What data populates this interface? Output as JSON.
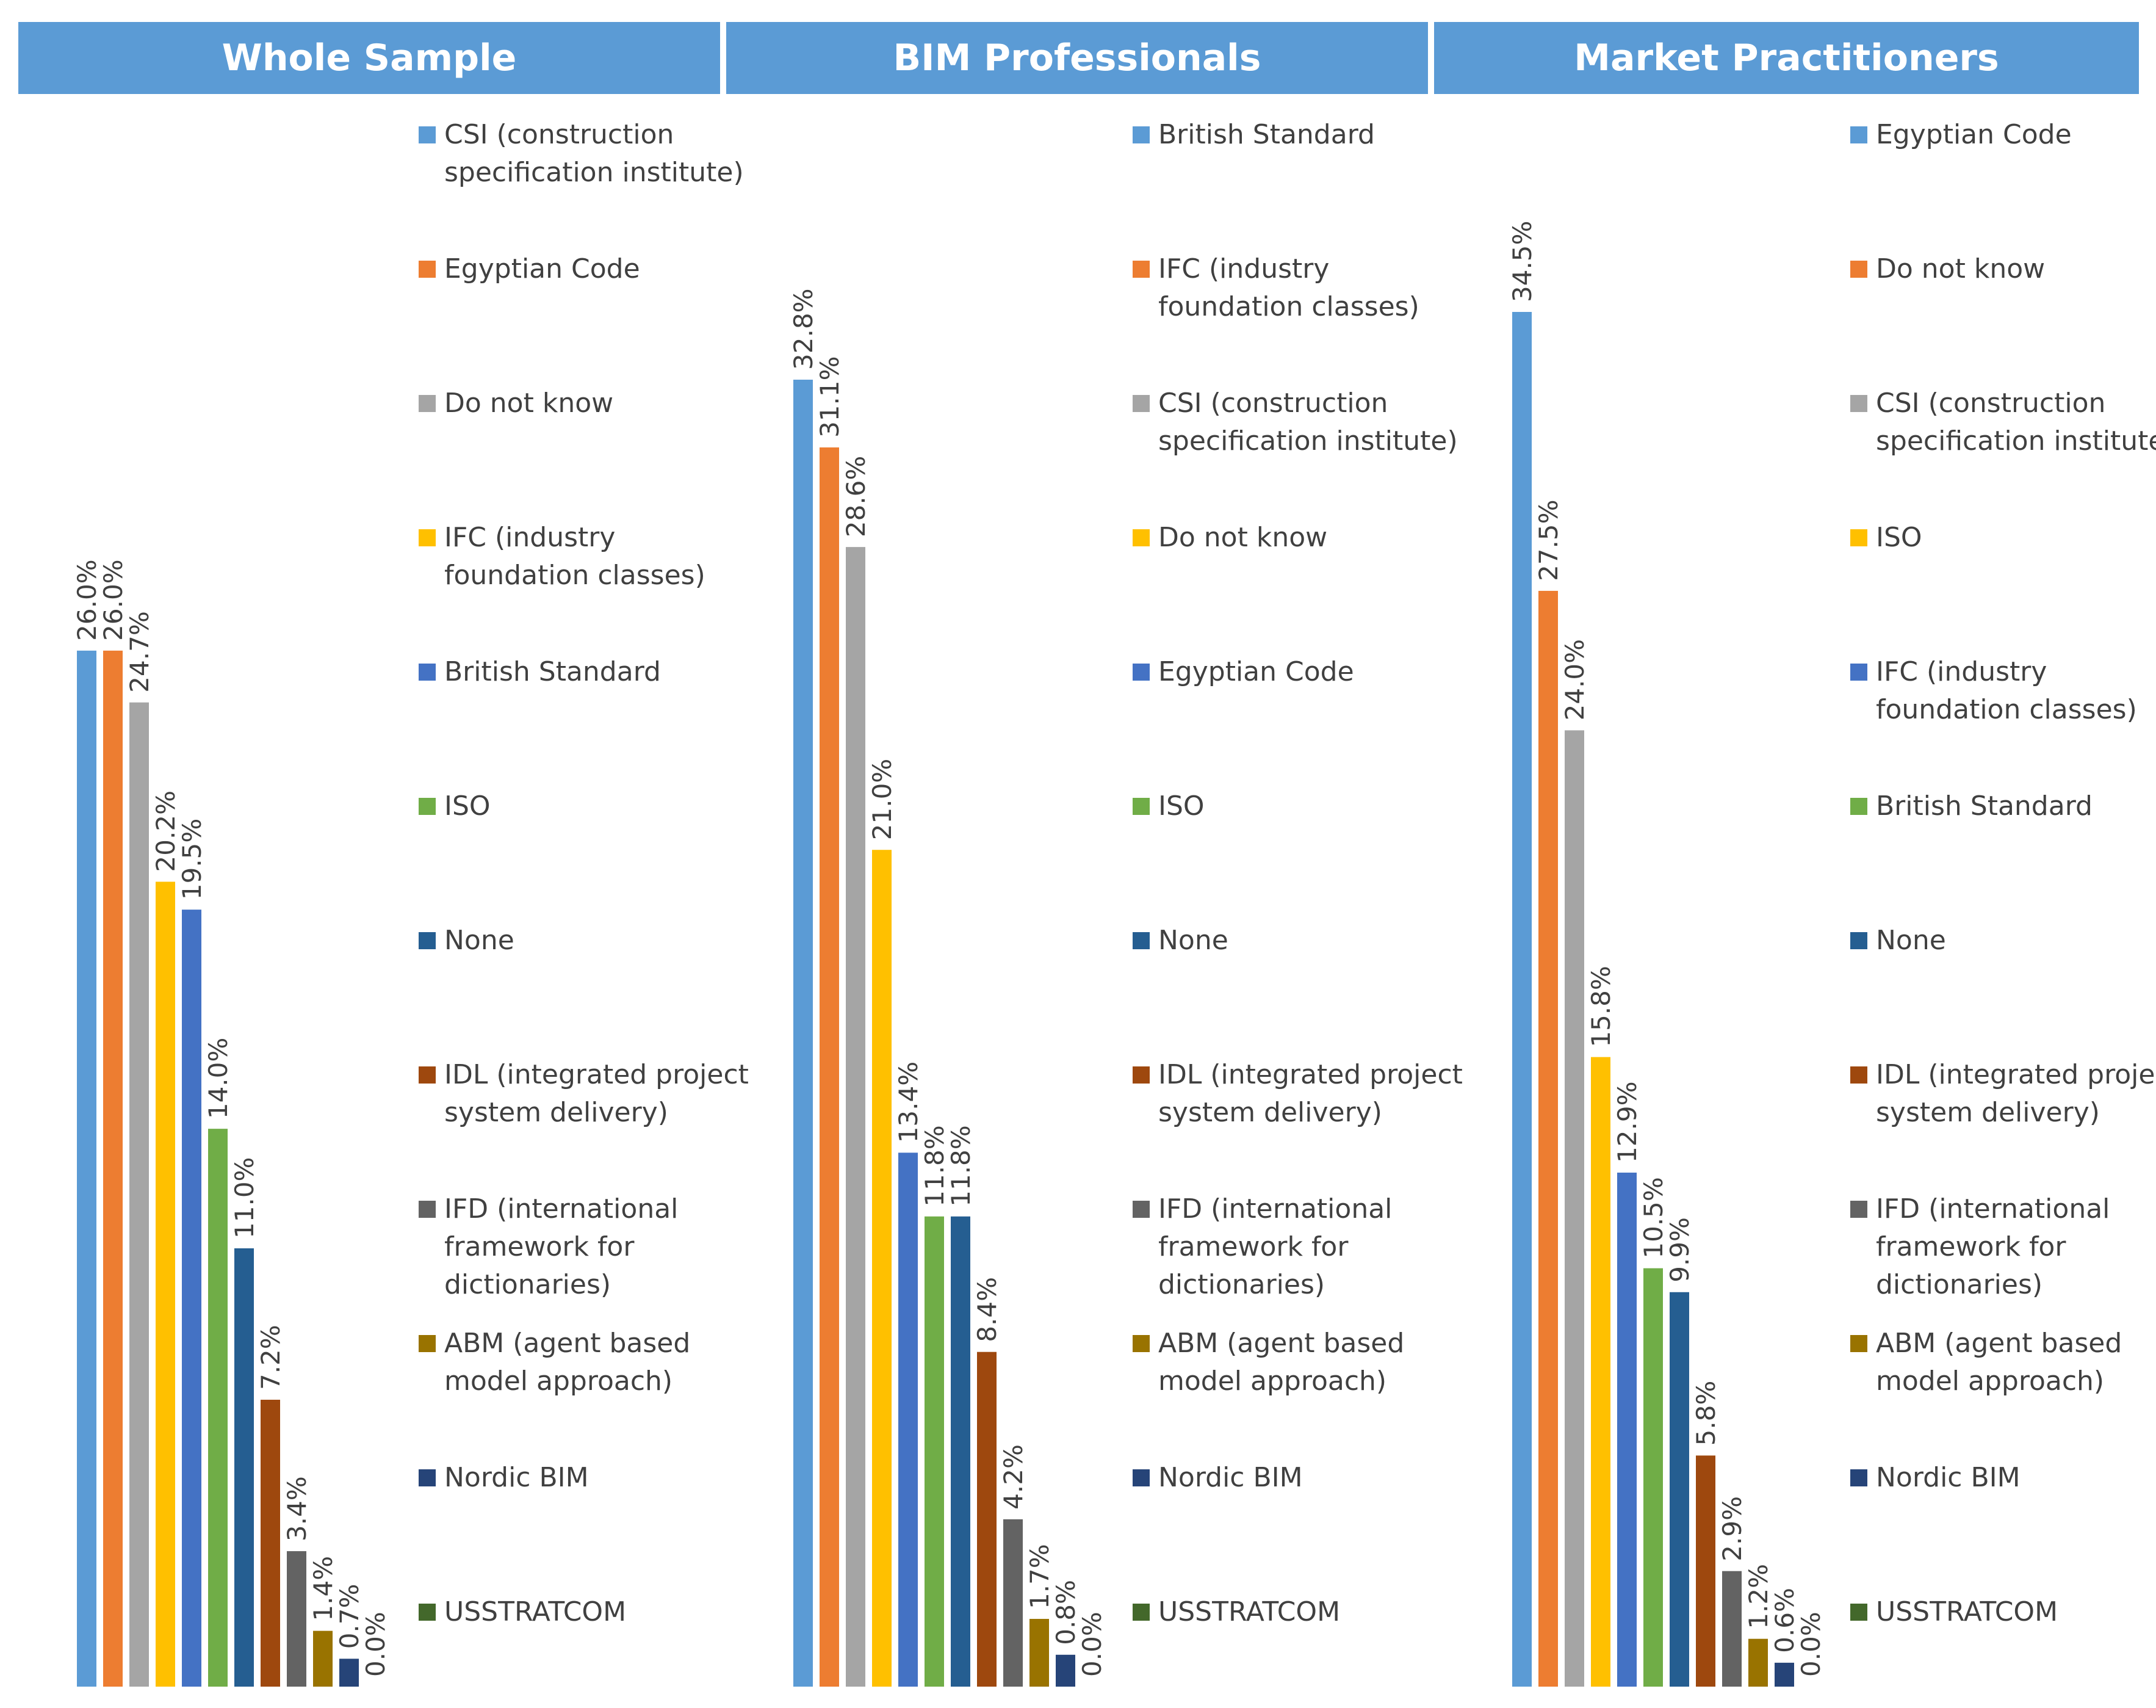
{
  "colors": {
    "header_bg": "#5b9bd5",
    "header_text": "#ffffff",
    "label_text": "#404040"
  },
  "chart_data": [
    {
      "type": "bar",
      "title": "Whole Sample",
      "categories": [
        "CSI (construction specification institute)",
        "Egyptian Code",
        "Do not know",
        "IFC (industry foundation classes)",
        "British Standard",
        "ISO",
        "None",
        "IDL (integrated project system delivery)",
        "IFD (international framework for dictionaries)",
        "ABM (agent based model approach)",
        "Nordic BIM",
        "USSTRATCOM"
      ],
      "values": [
        26.0,
        26.0,
        24.7,
        20.2,
        19.5,
        14.0,
        11.0,
        7.2,
        3.4,
        1.4,
        0.7,
        0.0
      ],
      "value_labels": [
        "26.0%",
        "26.0%",
        "24.7%",
        "20.2%",
        "19.5%",
        "14.0%",
        "11.0%",
        "7.2%",
        "3.4%",
        "1.4%",
        "0.7%",
        "0.0%"
      ],
      "colors": [
        "#5b9bd5",
        "#ed7d31",
        "#a5a5a5",
        "#ffc000",
        "#4472c4",
        "#70ad47",
        "#255e91",
        "#9e480e",
        "#636363",
        "#997300",
        "#264478",
        "#43682b"
      ],
      "legend_items": [
        {
          "label": "CSI (construction specification institute)",
          "color": "#5b9bd5"
        },
        {
          "label": "Egyptian Code",
          "color": "#ed7d31"
        },
        {
          "label": "Do not know",
          "color": "#a5a5a5"
        },
        {
          "label": "IFC (industry foundation classes)",
          "color": "#ffc000"
        },
        {
          "label": "British Standard",
          "color": "#4472c4"
        },
        {
          "label": "ISO",
          "color": "#70ad47"
        },
        {
          "label": "None",
          "color": "#255e91"
        },
        {
          "label": "IDL (integrated project system delivery)",
          "color": "#9e480e"
        },
        {
          "label": "IFD (international framework for dictionaries)",
          "color": "#636363"
        },
        {
          "label": "ABM (agent based model approach)",
          "color": "#997300"
        },
        {
          "label": "Nordic BIM",
          "color": "#264478"
        },
        {
          "label": "USSTRATCOM",
          "color": "#43682b"
        }
      ],
      "ylim": [
        0,
        35
      ],
      "grid": false,
      "legend_position": "right"
    },
    {
      "type": "bar",
      "title": "BIM Professionals",
      "categories": [
        "British Standard",
        "IFC (industry foundation classes)",
        "CSI (construction specification institute)",
        "Do not know",
        "Egyptian Code",
        "ISO",
        "None",
        "IDL (integrated project system delivery)",
        "IFD (international framework for dictionaries)",
        "ABM (agent based model approach)",
        "Nordic BIM",
        "USSTRATCOM"
      ],
      "values": [
        32.8,
        31.1,
        28.6,
        21.0,
        13.4,
        11.8,
        11.8,
        8.4,
        4.2,
        1.7,
        0.8,
        0.0
      ],
      "value_labels": [
        "32.8%",
        "31.1%",
        "28.6%",
        "21.0%",
        "13.4%",
        "11.8%",
        "11.8%",
        "8.4%",
        "4.2%",
        "1.7%",
        "0.8%",
        "0.0%"
      ],
      "colors": [
        "#5b9bd5",
        "#ed7d31",
        "#a5a5a5",
        "#ffc000",
        "#4472c4",
        "#70ad47",
        "#255e91",
        "#9e480e",
        "#636363",
        "#997300",
        "#264478",
        "#43682b"
      ],
      "legend_items": [
        {
          "label": "British Standard",
          "color": "#5b9bd5"
        },
        {
          "label": "IFC (industry foundation classes)",
          "color": "#ed7d31"
        },
        {
          "label": "CSI (construction specification institute)",
          "color": "#a5a5a5"
        },
        {
          "label": "Do not know",
          "color": "#ffc000"
        },
        {
          "label": "Egyptian Code",
          "color": "#4472c4"
        },
        {
          "label": "ISO",
          "color": "#70ad47"
        },
        {
          "label": "None",
          "color": "#255e91"
        },
        {
          "label": "IDL (integrated project system delivery)",
          "color": "#9e480e"
        },
        {
          "label": "IFD (international framework for dictionaries)",
          "color": "#636363"
        },
        {
          "label": "ABM (agent based model approach)",
          "color": "#997300"
        },
        {
          "label": "Nordic BIM",
          "color": "#264478"
        },
        {
          "label": "USSTRATCOM",
          "color": "#43682b"
        }
      ],
      "ylim": [
        0,
        35
      ],
      "grid": false,
      "legend_position": "right"
    },
    {
      "type": "bar",
      "title": "Market Practitioners",
      "categories": [
        "Egyptian Code",
        "Do not know",
        "CSI (construction specification institute)",
        "ISO",
        "IFC (industry foundation classes)",
        "British Standard",
        "None",
        "IDL (integrated project system delivery)",
        "IFD (international framework for dictionaries)",
        "ABM (agent based model approach)",
        "Nordic BIM",
        "USSTRATCOM"
      ],
      "values": [
        34.5,
        27.5,
        24.0,
        15.8,
        12.9,
        10.5,
        9.9,
        5.8,
        2.9,
        1.2,
        0.6,
        0.0
      ],
      "value_labels": [
        "34.5%",
        "27.5%",
        "24.0%",
        "15.8%",
        "12.9%",
        "10.5%",
        "9.9%",
        "5.8%",
        "2.9%",
        "1.2%",
        "0.6%",
        "0.0%"
      ],
      "colors": [
        "#5b9bd5",
        "#ed7d31",
        "#a5a5a5",
        "#ffc000",
        "#4472c4",
        "#70ad47",
        "#255e91",
        "#9e480e",
        "#636363",
        "#997300",
        "#264478",
        "#43682b"
      ],
      "legend_items": [
        {
          "label": "Egyptian Code",
          "color": "#5b9bd5"
        },
        {
          "label": "Do not know",
          "color": "#ed7d31"
        },
        {
          "label": "CSI (construction specification institute)",
          "color": "#a5a5a5"
        },
        {
          "label": "ISO",
          "color": "#ffc000"
        },
        {
          "label": "IFC (industry foundation classes)",
          "color": "#4472c4"
        },
        {
          "label": "British Standard",
          "color": "#70ad47"
        },
        {
          "label": "None",
          "color": "#255e91"
        },
        {
          "label": "IDL (integrated project system delivery)",
          "color": "#9e480e"
        },
        {
          "label": "IFD (international framework for dictionaries)",
          "color": "#636363"
        },
        {
          "label": "ABM (agent based model approach)",
          "color": "#997300"
        },
        {
          "label": "Nordic BIM",
          "color": "#264478"
        },
        {
          "label": "USSTRATCOM",
          "color": "#43682b"
        }
      ],
      "ylim": [
        0,
        35
      ],
      "grid": false,
      "legend_position": "right"
    }
  ]
}
